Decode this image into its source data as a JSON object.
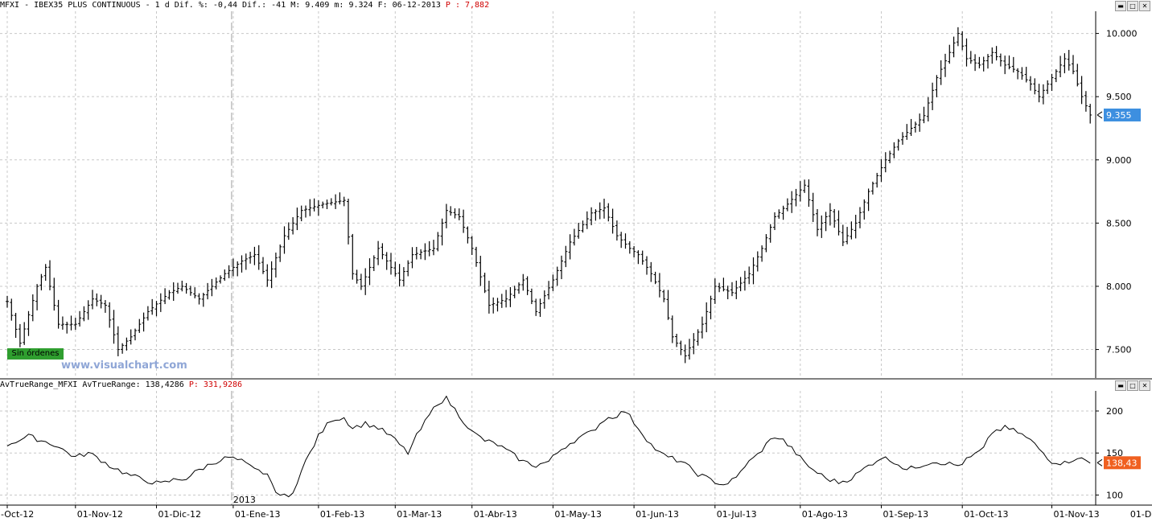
{
  "header_price": {
    "symbol_text": "MFXI - IBEX35 PLUS CONTINUOUS -  1 d Dif. %: -0,44 Dif.: -41 M: 9.409 m: 9.324 F: 06-12-2013",
    "p_label": "P : 7,882"
  },
  "header_indicator": {
    "text": "AvTrueRange_MFXI AvTrueRange: 138,4286",
    "p_label": "P: 331,9286"
  },
  "badge": "Sin órdenes",
  "watermark": "www.visualchart.com",
  "year_marker": "2013",
  "window_buttons": {
    "min": "▬",
    "max": "□",
    "close": "✕"
  },
  "colors": {
    "bar": "#000000",
    "grid": "#c8c8c8",
    "current_price_bg": "#3d8fe0",
    "current_atr_bg": "#f06020",
    "badge_bg": "#2f9e2f",
    "alert": "#d00000"
  },
  "chart_data": [
    {
      "type": "ohlc",
      "symbol": "MFXI",
      "ylim": [
        7300,
        10150
      ],
      "y_ticks": [
        "10.000",
        "9.500",
        "9.000",
        "8.500",
        "8.000",
        "7.500"
      ],
      "y_tick_values": [
        10000,
        9500,
        9000,
        8500,
        8000,
        7500
      ],
      "current_value": 9355,
      "current_label": "9.355",
      "anchors": [
        [
          0,
          7880
        ],
        [
          3,
          7550
        ],
        [
          7,
          8000
        ],
        [
          9,
          8150
        ],
        [
          12,
          7700
        ],
        [
          16,
          7700
        ],
        [
          20,
          7900
        ],
        [
          23,
          7850
        ],
        [
          26,
          7500
        ],
        [
          29,
          7600
        ],
        [
          33,
          7800
        ],
        [
          38,
          7950
        ],
        [
          41,
          8000
        ],
        [
          45,
          7900
        ],
        [
          48,
          8000
        ],
        [
          51,
          8100
        ],
        [
          55,
          8200
        ],
        [
          58,
          8250
        ],
        [
          61,
          8050
        ],
        [
          65,
          8400
        ],
        [
          69,
          8600
        ],
        [
          74,
          8650
        ],
        [
          79,
          8680
        ],
        [
          81,
          8100
        ],
        [
          83,
          8000
        ],
        [
          87,
          8300
        ],
        [
          92,
          8050
        ],
        [
          95,
          8250
        ],
        [
          100,
          8300
        ],
        [
          103,
          8600
        ],
        [
          106,
          8550
        ],
        [
          109,
          8300
        ],
        [
          113,
          7850
        ],
        [
          117,
          7900
        ],
        [
          121,
          8050
        ],
        [
          124,
          7800
        ],
        [
          128,
          8050
        ],
        [
          132,
          8350
        ],
        [
          137,
          8580
        ],
        [
          140,
          8620
        ],
        [
          143,
          8400
        ],
        [
          146,
          8300
        ],
        [
          148,
          8250
        ],
        [
          151,
          8100
        ],
        [
          154,
          7900
        ],
        [
          156,
          7600
        ],
        [
          159,
          7450
        ],
        [
          163,
          7700
        ],
        [
          166,
          8000
        ],
        [
          170,
          7950
        ],
        [
          174,
          8100
        ],
        [
          177,
          8300
        ],
        [
          180,
          8550
        ],
        [
          183,
          8650
        ],
        [
          187,
          8800
        ],
        [
          190,
          8450
        ],
        [
          193,
          8600
        ],
        [
          196,
          8350
        ],
        [
          199,
          8500
        ],
        [
          202,
          8750
        ],
        [
          206,
          9000
        ],
        [
          209,
          9150
        ],
        [
          212,
          9250
        ],
        [
          215,
          9350
        ],
        [
          218,
          9650
        ],
        [
          221,
          9850
        ],
        [
          223,
          10000
        ],
        [
          225,
          9800
        ],
        [
          228,
          9750
        ],
        [
          231,
          9850
        ],
        [
          234,
          9750
        ],
        [
          237,
          9700
        ],
        [
          240,
          9600
        ],
        [
          242,
          9500
        ],
        [
          245,
          9650
        ],
        [
          248,
          9800
        ],
        [
          250,
          9700
        ],
        [
          252,
          9500
        ],
        [
          254,
          9355
        ]
      ],
      "atr_anchors": [
        [
          0,
          160
        ],
        [
          5,
          170
        ],
        [
          8,
          165
        ],
        [
          11,
          160
        ],
        [
          16,
          145
        ],
        [
          19,
          150
        ],
        [
          21,
          145
        ],
        [
          24,
          135
        ],
        [
          28,
          125
        ],
        [
          32,
          118
        ],
        [
          36,
          113
        ],
        [
          39,
          118
        ],
        [
          42,
          120
        ],
        [
          45,
          130
        ],
        [
          49,
          140
        ],
        [
          52,
          145
        ],
        [
          55,
          140
        ],
        [
          58,
          130
        ],
        [
          61,
          125
        ],
        [
          62,
          112
        ],
        [
          64,
          100
        ],
        [
          66,
          97
        ],
        [
          67,
          105
        ],
        [
          70,
          140
        ],
        [
          73,
          170
        ],
        [
          76,
          190
        ],
        [
          79,
          192
        ],
        [
          81,
          180
        ],
        [
          84,
          185
        ],
        [
          87,
          180
        ],
        [
          90,
          170
        ],
        [
          92,
          160
        ],
        [
          94,
          150
        ],
        [
          96,
          170
        ],
        [
          99,
          195
        ],
        [
          101,
          210
        ],
        [
          103,
          215
        ],
        [
          106,
          195
        ],
        [
          109,
          175
        ],
        [
          112,
          165
        ],
        [
          115,
          160
        ],
        [
          118,
          150
        ],
        [
          121,
          140
        ],
        [
          124,
          135
        ],
        [
          127,
          140
        ],
        [
          130,
          155
        ],
        [
          133,
          165
        ],
        [
          135,
          170
        ],
        [
          137,
          175
        ],
        [
          140,
          190
        ],
        [
          143,
          195
        ],
        [
          145,
          200
        ],
        [
          148,
          180
        ],
        [
          151,
          160
        ],
        [
          153,
          150
        ],
        [
          155,
          145
        ],
        [
          158,
          140
        ],
        [
          162,
          125
        ],
        [
          165,
          118
        ],
        [
          168,
          112
        ],
        [
          171,
          120
        ],
        [
          173,
          135
        ],
        [
          176,
          148
        ],
        [
          178,
          160
        ],
        [
          180,
          170
        ],
        [
          182,
          165
        ],
        [
          185,
          150
        ],
        [
          187,
          138
        ],
        [
          189,
          130
        ],
        [
          192,
          120
        ],
        [
          195,
          115
        ],
        [
          198,
          120
        ],
        [
          202,
          135
        ],
        [
          205,
          145
        ],
        [
          208,
          140
        ],
        [
          211,
          130
        ],
        [
          214,
          135
        ],
        [
          217,
          140
        ],
        [
          220,
          138
        ],
        [
          223,
          135
        ],
        [
          226,
          145
        ],
        [
          229,
          155
        ],
        [
          231,
          175
        ],
        [
          234,
          180
        ],
        [
          237,
          175
        ],
        [
          240,
          165
        ],
        [
          243,
          150
        ],
        [
          245,
          140
        ],
        [
          248,
          138
        ],
        [
          251,
          145
        ],
        [
          254,
          138
        ]
      ],
      "x_labels": [
        "-Oct-12",
        "01-Nov-12",
        "01-Dic-12",
        "01-Ene-13",
        "01-Feb-13",
        "01-Mar-13",
        "01-Abr-13",
        "01-May-13",
        "01-Jun-13",
        "01-Jul-13",
        "01-Ago-13",
        "01-Sep-13",
        "01-Oct-13",
        "01-Nov-13",
        "01-D"
      ],
      "x_label_bars": [
        0,
        16,
        35,
        53,
        73,
        91,
        109,
        128,
        147,
        166,
        186,
        205,
        224,
        245,
        263
      ]
    },
    {
      "type": "line",
      "name": "AvTrueRange",
      "ylim": [
        88,
        222
      ],
      "y_ticks": [
        "200",
        "150",
        "100"
      ],
      "y_tick_values": [
        200,
        150,
        100
      ],
      "current_value": 138.43,
      "current_label": "138,43"
    }
  ]
}
